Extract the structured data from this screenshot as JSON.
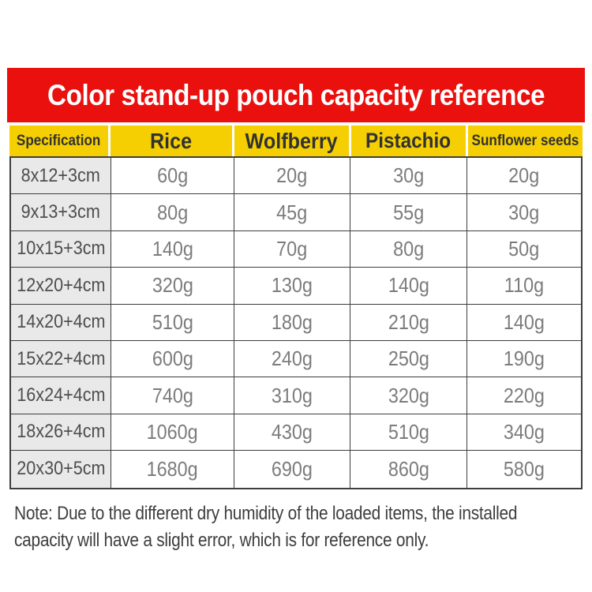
{
  "title": "Color stand-up pouch capacity reference",
  "table": {
    "columns": [
      "Specification",
      "Rice",
      "Wolfberry",
      "Pistachio",
      "Sunflower seeds"
    ],
    "rows": [
      {
        "spec": "8x12+3cm",
        "values": [
          "60g",
          "20g",
          "30g",
          "20g"
        ]
      },
      {
        "spec": "9x13+3cm",
        "values": [
          "80g",
          "45g",
          "55g",
          "30g"
        ]
      },
      {
        "spec": "10x15+3cm",
        "values": [
          "140g",
          "70g",
          "80g",
          "50g"
        ]
      },
      {
        "spec": "12x20+4cm",
        "values": [
          "320g",
          "130g",
          "140g",
          "110g"
        ]
      },
      {
        "spec": "14x20+4cm",
        "values": [
          "510g",
          "180g",
          "210g",
          "140g"
        ]
      },
      {
        "spec": "15x22+4cm",
        "values": [
          "600g",
          "240g",
          "250g",
          "190g"
        ]
      },
      {
        "spec": "16x24+4cm",
        "values": [
          "740g",
          "310g",
          "320g",
          "220g"
        ]
      },
      {
        "spec": "18x26+4cm",
        "values": [
          "1060g",
          "430g",
          "510g",
          "340g"
        ]
      },
      {
        "spec": "20x30+5cm",
        "values": [
          "1680g",
          "690g",
          "860g",
          "580g"
        ]
      }
    ]
  },
  "note": {
    "line1": "Note: Due to the different dry humidity of the loaded items, the installed",
    "line2": "capacity will have a slight error, which is for reference only."
  },
  "colors": {
    "banner_red": "#e9100e",
    "header_yellow": "#f5cf02",
    "spec_cell_gray": "#e9e9e9",
    "border_gray": "#3e3e3e",
    "value_text_gray": "#7c7c7c",
    "title_text_white": "#ffffff",
    "header_text_dark": "#323232"
  },
  "chart_data": {
    "type": "table",
    "title": "Color stand-up pouch capacity reference",
    "columns": [
      "Specification",
      "Rice",
      "Wolfberry",
      "Pistachio",
      "Sunflower seeds"
    ],
    "rows": [
      [
        "8x12+3cm",
        "60g",
        "20g",
        "30g",
        "20g"
      ],
      [
        "9x13+3cm",
        "80g",
        "45g",
        "55g",
        "30g"
      ],
      [
        "10x15+3cm",
        "140g",
        "70g",
        "80g",
        "50g"
      ],
      [
        "12x20+4cm",
        "320g",
        "130g",
        "140g",
        "110g"
      ],
      [
        "14x20+4cm",
        "510g",
        "180g",
        "210g",
        "140g"
      ],
      [
        "15x22+4cm",
        "600g",
        "240g",
        "250g",
        "190g"
      ],
      [
        "16x24+4cm",
        "740g",
        "310g",
        "320g",
        "220g"
      ],
      [
        "18x26+4cm",
        "1060g",
        "430g",
        "510g",
        "340g"
      ],
      [
        "20x30+5cm",
        "1680g",
        "690g",
        "860g",
        "580g"
      ]
    ]
  }
}
